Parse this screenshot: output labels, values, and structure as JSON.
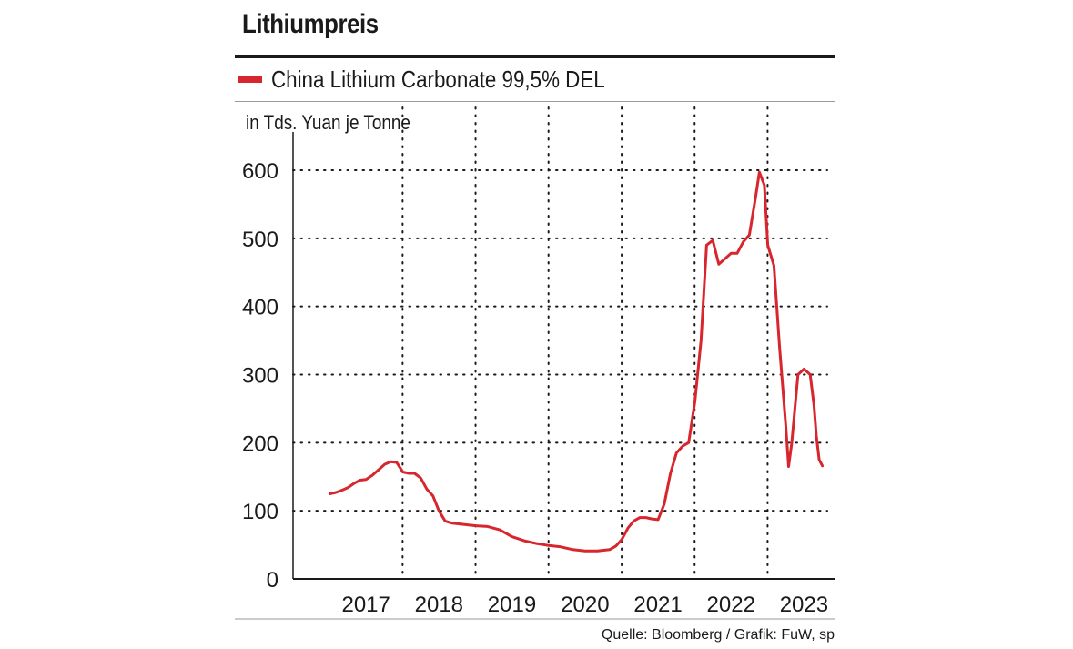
{
  "title": "Lithiumpreis",
  "source": "Quelle: Bloomberg / Grafik: FuW, sp",
  "chart_data": {
    "type": "line",
    "title": "Lithiumpreis",
    "ylabel": "in Tds. Yuan je Tonne",
    "xlabel": "",
    "ylim": [
      0,
      600
    ],
    "yticks": [
      "0",
      "100",
      "200",
      "300",
      "400",
      "500",
      "600"
    ],
    "xticks": [
      "2017",
      "2018",
      "2019",
      "2020",
      "2021",
      "2022",
      "2023"
    ],
    "grid": true,
    "legend_position": "top-left",
    "colors": {
      "series": "#d7262e",
      "grid": "#1a1a1a",
      "axis": "#1a1a1a"
    },
    "series": [
      {
        "name": "China Lithium Carbonate 99,5% DEL",
        "x": [
          "2017-01-01",
          "2017-02-01",
          "2017-03-01",
          "2017-04-01",
          "2017-05-01",
          "2017-06-01",
          "2017-07-01",
          "2017-08-01",
          "2017-09-01",
          "2017-10-01",
          "2017-11-01",
          "2017-12-01",
          "2018-01-01",
          "2018-02-01",
          "2018-03-01",
          "2018-04-01",
          "2018-05-01",
          "2018-06-01",
          "2018-07-01",
          "2018-08-01",
          "2018-09-01",
          "2018-10-01",
          "2018-11-01",
          "2018-12-01",
          "2019-01-01",
          "2019-03-01",
          "2019-05-01",
          "2019-07-01",
          "2019-09-01",
          "2019-11-01",
          "2020-01-01",
          "2020-03-01",
          "2020-05-01",
          "2020-07-01",
          "2020-09-01",
          "2020-11-01",
          "2020-12-01",
          "2021-01-01",
          "2021-02-01",
          "2021-03-01",
          "2021-04-01",
          "2021-05-01",
          "2021-06-01",
          "2021-07-01",
          "2021-08-01",
          "2021-09-01",
          "2021-10-01",
          "2021-11-01",
          "2021-12-01",
          "2022-01-01",
          "2022-02-01",
          "2022-03-01",
          "2022-04-01",
          "2022-05-01",
          "2022-06-01",
          "2022-07-01",
          "2022-08-01",
          "2022-09-01",
          "2022-10-01",
          "2022-11-01",
          "2022-11-20",
          "2022-12-15",
          "2023-01-01",
          "2023-02-01",
          "2023-03-01",
          "2023-04-01",
          "2023-04-15",
          "2023-05-01",
          "2023-06-01",
          "2023-07-01",
          "2023-08-01",
          "2023-08-20",
          "2023-09-01",
          "2023-09-15",
          "2023-10-01"
        ],
        "values": [
          125,
          127,
          130,
          134,
          140,
          145,
          146,
          152,
          160,
          168,
          172,
          171,
          157,
          155,
          155,
          148,
          132,
          122,
          100,
          85,
          82,
          81,
          80,
          79,
          78,
          77,
          72,
          62,
          56,
          52,
          49,
          47,
          43,
          41,
          41,
          43,
          48,
          58,
          75,
          85,
          90,
          90,
          88,
          87,
          110,
          155,
          185,
          195,
          200,
          260,
          350,
          490,
          497,
          462,
          470,
          478,
          478,
          495,
          505,
          560,
          597,
          578,
          490,
          460,
          340,
          225,
          165,
          200,
          300,
          308,
          300,
          255,
          210,
          175,
          166
        ]
      }
    ]
  }
}
